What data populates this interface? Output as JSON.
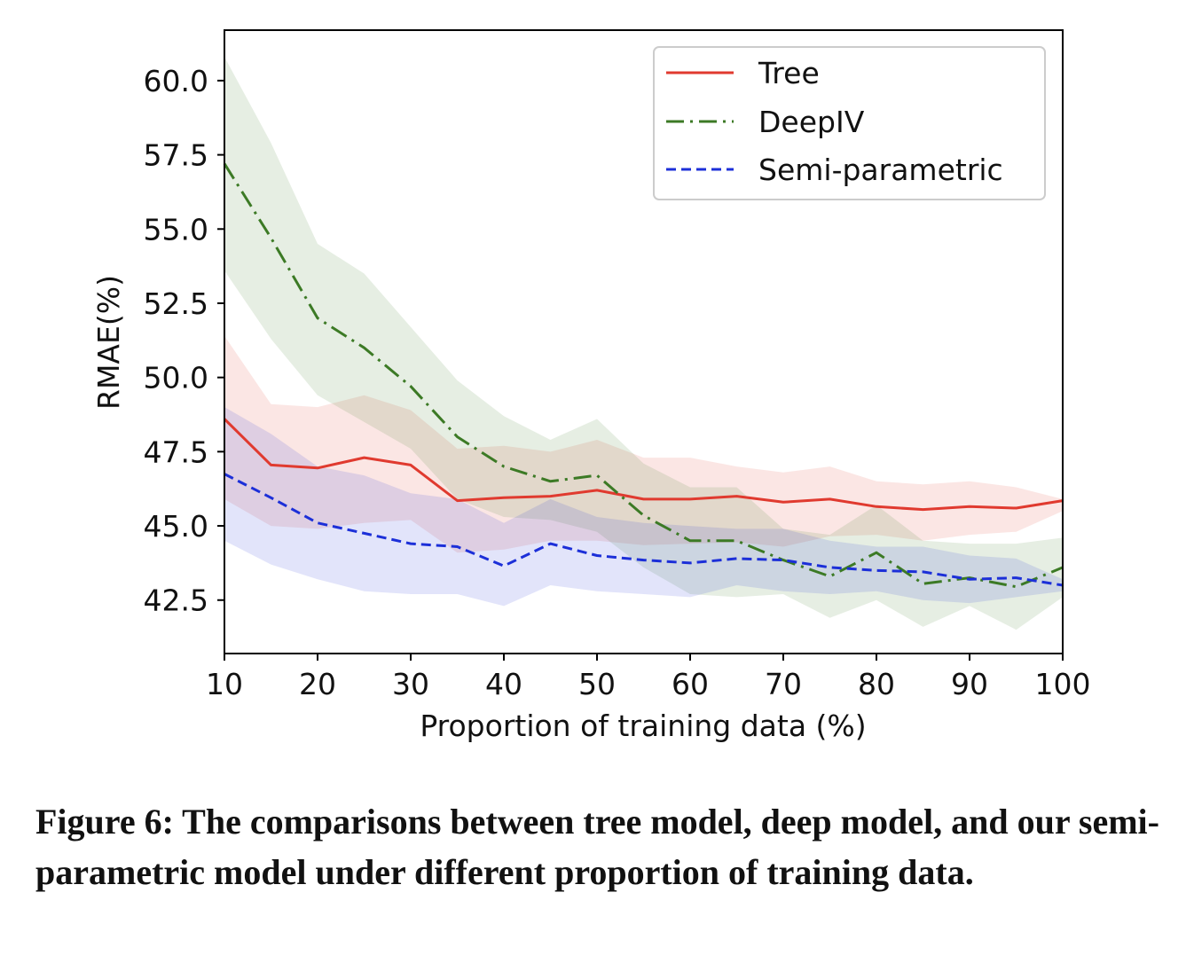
{
  "caption": "Figure 6: The comparisons between tree model, deep model, and our semi-parametric model under different proportion of training data.",
  "chart_data": {
    "type": "line",
    "title": "",
    "xlabel": "Proportion of training data (%)",
    "ylabel": "RMAE(%)",
    "xlim": [
      10,
      100
    ],
    "ylim": [
      40.7,
      61.7
    ],
    "xticks": [
      10,
      20,
      30,
      40,
      50,
      60,
      70,
      80,
      90,
      100
    ],
    "yticks": [
      42.5,
      45.0,
      47.5,
      50.0,
      52.5,
      55.0,
      57.5,
      60.0
    ],
    "ytick_labels": [
      "42.5",
      "45.0",
      "47.5",
      "50.0",
      "52.5",
      "55.0",
      "57.5",
      "60.0"
    ],
    "legend_position": "top-right",
    "grid": false,
    "x": [
      10,
      15,
      20,
      25,
      30,
      35,
      40,
      45,
      50,
      55,
      60,
      65,
      70,
      75,
      80,
      85,
      90,
      95,
      100
    ],
    "series": [
      {
        "name": "Tree",
        "color": "#e03a2f",
        "style": "solid",
        "values": [
          48.6,
          47.05,
          46.95,
          47.3,
          47.05,
          45.85,
          45.95,
          46.0,
          46.2,
          45.9,
          45.9,
          46.0,
          45.8,
          45.9,
          45.65,
          45.55,
          45.65,
          45.6,
          45.85
        ],
        "lower": [
          45.9,
          45.0,
          44.9,
          45.1,
          45.2,
          44.1,
          44.2,
          44.5,
          44.5,
          44.35,
          44.4,
          44.45,
          44.3,
          44.65,
          44.7,
          44.5,
          44.7,
          44.8,
          45.5
        ],
        "upper": [
          51.4,
          49.1,
          49.0,
          49.4,
          48.9,
          47.6,
          47.7,
          47.5,
          47.9,
          47.3,
          47.3,
          47.0,
          46.8,
          47.0,
          46.5,
          46.4,
          46.5,
          46.3,
          45.9
        ]
      },
      {
        "name": "DeepIV",
        "color": "#3c7a25",
        "style": "dashdot",
        "values": [
          57.2,
          54.7,
          52.0,
          51.0,
          49.7,
          48.0,
          47.0,
          46.5,
          46.7,
          45.35,
          44.5,
          44.5,
          43.85,
          43.3,
          44.1,
          43.05,
          43.25,
          42.95,
          43.6
        ],
        "lower": [
          53.6,
          51.3,
          49.4,
          48.5,
          47.6,
          45.9,
          45.3,
          45.2,
          44.8,
          43.6,
          42.7,
          42.6,
          42.7,
          41.9,
          42.5,
          41.6,
          42.3,
          41.5,
          42.6
        ],
        "upper": [
          60.8,
          57.9,
          54.5,
          53.5,
          51.7,
          49.9,
          48.7,
          47.9,
          48.6,
          47.1,
          46.3,
          46.3,
          44.9,
          44.7,
          45.7,
          44.5,
          44.4,
          44.4,
          44.6
        ]
      },
      {
        "name": "Semi-parametric",
        "color": "#1c2fd8",
        "style": "dashed",
        "values": [
          46.75,
          45.95,
          45.1,
          44.75,
          44.4,
          44.3,
          43.65,
          44.4,
          44.0,
          43.85,
          43.75,
          43.9,
          43.85,
          43.6,
          43.5,
          43.45,
          43.2,
          43.25,
          43.0
        ],
        "lower": [
          44.5,
          43.7,
          43.2,
          42.8,
          42.7,
          42.7,
          42.3,
          43.0,
          42.8,
          42.7,
          42.6,
          43.0,
          42.8,
          42.7,
          42.8,
          42.5,
          42.4,
          42.6,
          42.8
        ],
        "upper": [
          49.0,
          48.1,
          47.0,
          46.7,
          46.1,
          45.9,
          45.1,
          45.9,
          45.3,
          45.1,
          45.0,
          44.9,
          44.9,
          44.5,
          44.3,
          44.3,
          44.0,
          43.9,
          43.2
        ]
      }
    ]
  }
}
